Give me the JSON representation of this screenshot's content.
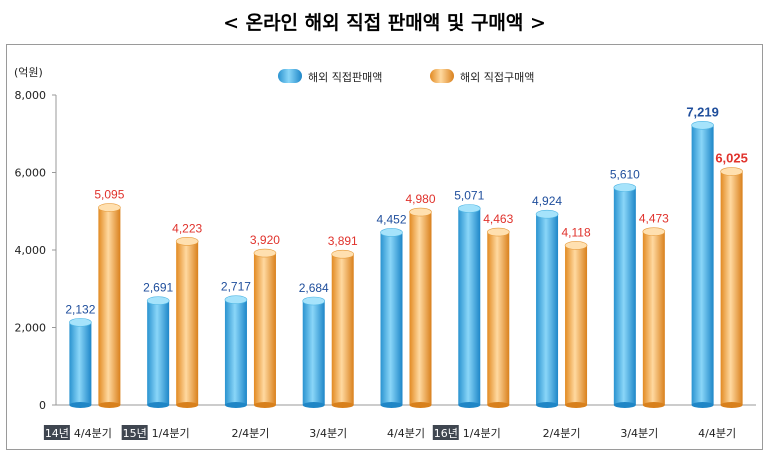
{
  "chart_data": {
    "type": "bar",
    "title": "< 온라인 해외 직접 판매액 및 구매액 >",
    "ylabel": "(억원)",
    "ylim": [
      0,
      8000
    ],
    "yticks": [
      "0",
      "2,000",
      "4,000",
      "6,000",
      "8,000"
    ],
    "categories": [
      {
        "year": "14년",
        "quarter": "4/4분기"
      },
      {
        "year": "15년",
        "quarter": "1/4분기"
      },
      {
        "year": "",
        "quarter": "2/4분기"
      },
      {
        "year": "",
        "quarter": "3/4분기"
      },
      {
        "year": "",
        "quarter": "4/4분기"
      },
      {
        "year": "16년",
        "quarter": "1/4분기"
      },
      {
        "year": "",
        "quarter": "2/4분기"
      },
      {
        "year": "",
        "quarter": "3/4분기"
      },
      {
        "year": "",
        "quarter": "4/4분기"
      }
    ],
    "series": [
      {
        "name": "해외 직접판매액",
        "color": "#3fb0e6",
        "values": [
          2132,
          2691,
          2717,
          2684,
          4452,
          5071,
          4924,
          5610,
          7219
        ],
        "labels": [
          "2,132",
          "2,691",
          "2,717",
          "2,684",
          "4,452",
          "5,071",
          "4,924",
          "5,610",
          "7,219"
        ],
        "label_color": "#1f4e9c"
      },
      {
        "name": "해외 직접구매액",
        "color": "#f0a040",
        "values": [
          5095,
          4223,
          3920,
          3891,
          4980,
          4463,
          4118,
          4473,
          6025
        ],
        "labels": [
          "5,095",
          "4,223",
          "3,920",
          "3,891",
          "4,980",
          "4,463",
          "4,118",
          "4,473",
          "6,025"
        ],
        "label_color": "#e0322c"
      }
    ]
  }
}
